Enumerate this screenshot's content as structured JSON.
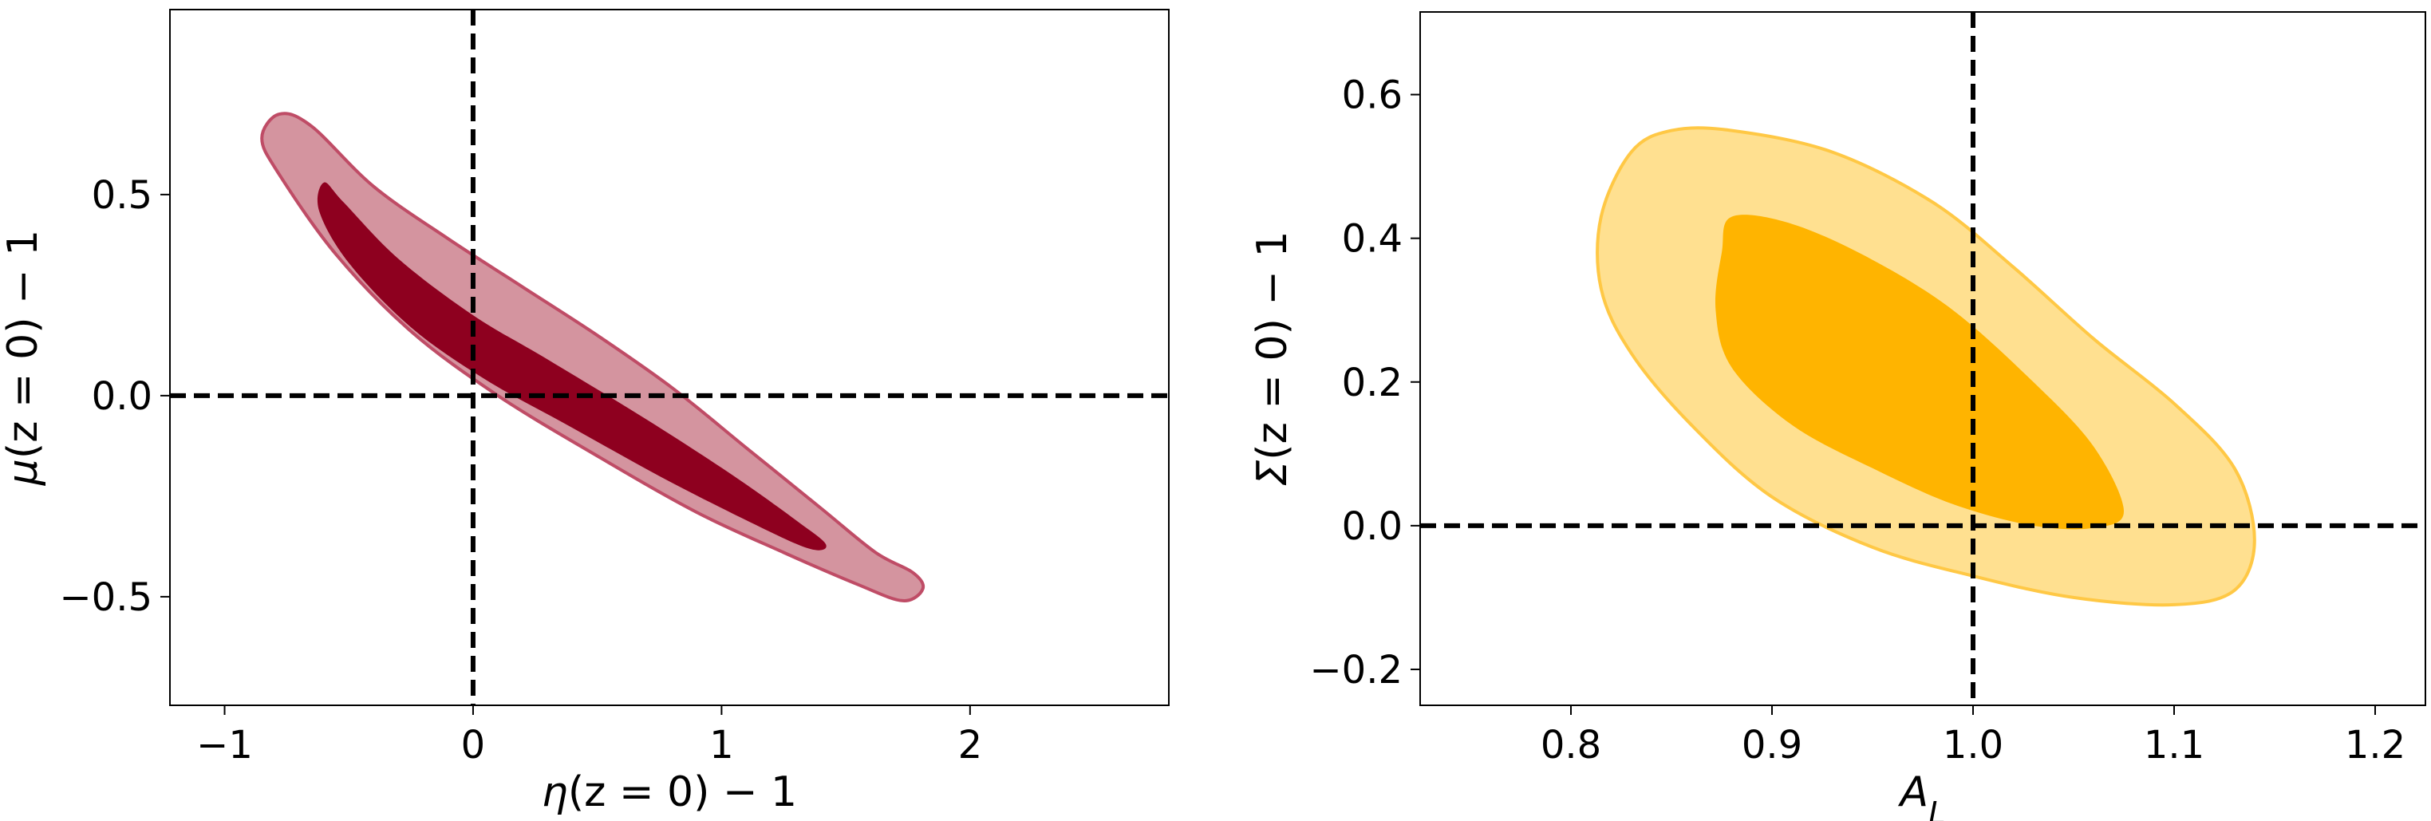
{
  "chart_data": [
    {
      "type": "contour",
      "id": "left",
      "xlabel": {
        "pre": "",
        "sym": "η",
        "sub": "",
        "post": "(z = 0) − 1"
      },
      "ylabel": {
        "pre": "",
        "sym": "μ",
        "sub": "",
        "post": "(z = 0) − 1"
      },
      "xlim": [
        -1.22,
        2.8
      ],
      "ylim": [
        -0.77,
        0.96
      ],
      "xticks": [
        {
          "v": -1,
          "label": "−1"
        },
        {
          "v": 0,
          "label": "0"
        },
        {
          "v": 1,
          "label": "1"
        },
        {
          "v": 2,
          "label": "2"
        }
      ],
      "yticks": [
        {
          "v": -0.5,
          "label": "−0.5"
        },
        {
          "v": 0.0,
          "label": "0.0"
        },
        {
          "v": 0.5,
          "label": "0.5"
        }
      ],
      "fiducial": {
        "x": 0,
        "y": 0
      },
      "colors": {
        "outer_fill": "#d4949f",
        "outer_edge": "#bf4c66",
        "inner_fill": "#8e001f"
      },
      "contours": {
        "outer": [
          [
            -0.78,
            0.7
          ],
          [
            -0.65,
            0.67
          ],
          [
            -0.4,
            0.52
          ],
          [
            -0.1,
            0.39
          ],
          [
            0.2,
            0.27
          ],
          [
            0.5,
            0.15
          ],
          [
            0.8,
            0.02
          ],
          [
            1.1,
            -0.13
          ],
          [
            1.4,
            -0.28
          ],
          [
            1.62,
            -0.39
          ],
          [
            1.77,
            -0.44
          ],
          [
            1.81,
            -0.48
          ],
          [
            1.73,
            -0.51
          ],
          [
            1.55,
            -0.47
          ],
          [
            1.25,
            -0.39
          ],
          [
            0.9,
            -0.29
          ],
          [
            0.5,
            -0.15
          ],
          [
            0.1,
            0.0
          ],
          [
            -0.25,
            0.16
          ],
          [
            -0.55,
            0.35
          ],
          [
            -0.78,
            0.55
          ],
          [
            -0.85,
            0.64
          ]
        ],
        "inner": [
          [
            -0.6,
            0.53
          ],
          [
            -0.52,
            0.48
          ],
          [
            -0.3,
            0.34
          ],
          [
            0.0,
            0.2
          ],
          [
            0.3,
            0.09
          ],
          [
            0.7,
            -0.06
          ],
          [
            1.05,
            -0.2
          ],
          [
            1.3,
            -0.31
          ],
          [
            1.42,
            -0.37
          ],
          [
            1.35,
            -0.38
          ],
          [
            1.1,
            -0.31
          ],
          [
            0.75,
            -0.2
          ],
          [
            0.4,
            -0.08
          ],
          [
            0.05,
            0.04
          ],
          [
            -0.25,
            0.17
          ],
          [
            -0.5,
            0.33
          ],
          [
            -0.62,
            0.46
          ]
        ]
      }
    },
    {
      "type": "contour",
      "id": "right",
      "xlabel": {
        "pre": "",
        "sym": "A",
        "sub": "L",
        "post": ""
      },
      "ylabel": {
        "pre": "",
        "sym": "Σ",
        "sub": "",
        "post": "(z = 0) − 1"
      },
      "xlim": [
        0.725,
        1.225
      ],
      "ylim": [
        -0.25,
        0.715
      ],
      "xticks": [
        {
          "v": 0.8,
          "label": "0.8"
        },
        {
          "v": 0.9,
          "label": "0.9"
        },
        {
          "v": 1.0,
          "label": "1.0"
        },
        {
          "v": 1.1,
          "label": "1.1"
        },
        {
          "v": 1.2,
          "label": "1.2"
        }
      ],
      "yticks": [
        {
          "v": -0.2,
          "label": "−0.2"
        },
        {
          "v": 0.0,
          "label": "0.0"
        },
        {
          "v": 0.2,
          "label": "0.2"
        },
        {
          "v": 0.4,
          "label": "0.4"
        },
        {
          "v": 0.6,
          "label": "0.6"
        }
      ],
      "fiducial": {
        "x": 1.0,
        "y": 0.0
      },
      "colors": {
        "outer_fill": "#ffe090",
        "outer_edge": "#ffc845",
        "inner_fill": "#ffb400"
      },
      "contours": {
        "outer": [
          [
            0.85,
            0.55
          ],
          [
            0.88,
            0.55
          ],
          [
            0.93,
            0.52
          ],
          [
            0.98,
            0.45
          ],
          [
            1.02,
            0.36
          ],
          [
            1.06,
            0.26
          ],
          [
            1.1,
            0.17
          ],
          [
            1.13,
            0.08
          ],
          [
            1.14,
            -0.02
          ],
          [
            1.13,
            -0.09
          ],
          [
            1.1,
            -0.11
          ],
          [
            1.05,
            -0.1
          ],
          [
            1.0,
            -0.07
          ],
          [
            0.95,
            -0.03
          ],
          [
            0.9,
            0.04
          ],
          [
            0.86,
            0.14
          ],
          [
            0.83,
            0.24
          ],
          [
            0.815,
            0.33
          ],
          [
            0.815,
            0.43
          ],
          [
            0.83,
            0.52
          ]
        ],
        "inner": [
          [
            0.88,
            0.43
          ],
          [
            0.91,
            0.42
          ],
          [
            0.95,
            0.37
          ],
          [
            0.99,
            0.3
          ],
          [
            1.03,
            0.2
          ],
          [
            1.06,
            0.11
          ],
          [
            1.075,
            0.02
          ],
          [
            1.06,
            -0.003
          ],
          [
            1.03,
            0.0
          ],
          [
            0.99,
            0.03
          ],
          [
            0.95,
            0.08
          ],
          [
            0.91,
            0.14
          ],
          [
            0.88,
            0.22
          ],
          [
            0.872,
            0.3
          ],
          [
            0.875,
            0.38
          ]
        ]
      }
    }
  ]
}
